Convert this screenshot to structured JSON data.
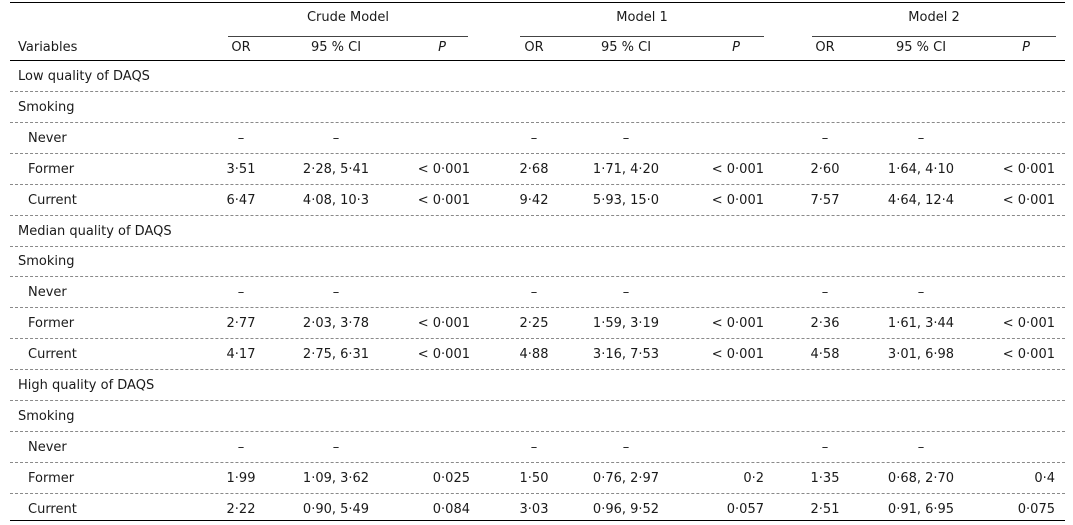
{
  "header": {
    "groups": [
      "Crude Model",
      "Model 1",
      "Model 2"
    ],
    "variables_label": "Variables",
    "col_or": "OR",
    "col_ci": "95 % CI",
    "col_p": "P"
  },
  "rows": [
    {
      "type": "section",
      "label": "Low quality of DAQS"
    },
    {
      "type": "section",
      "label": "Smoking"
    },
    {
      "type": "data",
      "label": "Never",
      "values": [
        "–",
        "–",
        "",
        "–",
        "–",
        "",
        "–",
        "–",
        ""
      ]
    },
    {
      "type": "data",
      "label": "Former",
      "values": [
        "3·51",
        "2·28, 5·41",
        "< 0·001",
        "2·68",
        "1·71, 4·20",
        "< 0·001",
        "2·60",
        "1·64, 4·10",
        "< 0·001"
      ]
    },
    {
      "type": "data",
      "label": "Current",
      "values": [
        "6·47",
        "4·08, 10·3",
        "< 0·001",
        "9·42",
        "5·93, 15·0",
        "< 0·001",
        "7·57",
        "4·64, 12·4",
        "< 0·001"
      ]
    },
    {
      "type": "section",
      "label": "Median quality of DAQS"
    },
    {
      "type": "section",
      "label": "Smoking"
    },
    {
      "type": "data",
      "label": "Never",
      "values": [
        "–",
        "–",
        "",
        "–",
        "–",
        "",
        "–",
        "–",
        ""
      ]
    },
    {
      "type": "data",
      "label": "Former",
      "values": [
        "2·77",
        "2·03, 3·78",
        "< 0·001",
        "2·25",
        "1·59, 3·19",
        "< 0·001",
        "2·36",
        "1·61, 3·44",
        "< 0·001"
      ]
    },
    {
      "type": "data",
      "label": "Current",
      "values": [
        "4·17",
        "2·75, 6·31",
        "< 0·001",
        "4·88",
        "3·16, 7·53",
        "< 0·001",
        "4·58",
        "3·01, 6·98",
        "< 0·001"
      ]
    },
    {
      "type": "section",
      "label": "High quality of DAQS"
    },
    {
      "type": "section",
      "label": "Smoking"
    },
    {
      "type": "data",
      "label": "Never",
      "values": [
        "–",
        "–",
        "",
        "–",
        "–",
        "",
        "–",
        "–",
        ""
      ]
    },
    {
      "type": "data",
      "label": "Former",
      "values": [
        "1·99",
        "1·09, 3·62",
        "0·025",
        "1·50",
        "0·76, 2·97",
        "0·2",
        "1·35",
        "0·68, 2·70",
        "0·4"
      ]
    },
    {
      "type": "data",
      "label": "Current",
      "values": [
        "2·22",
        "0·90, 5·49",
        "0·084",
        "3·03",
        "0·96, 9·52",
        "0·057",
        "2·51",
        "0·91, 6·95",
        "0·075"
      ]
    }
  ]
}
